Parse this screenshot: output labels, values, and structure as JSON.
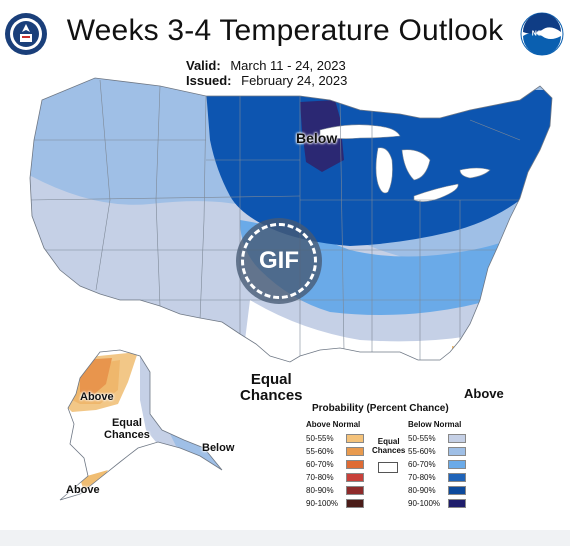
{
  "title": "Weeks 3-4 Temperature Outlook",
  "valid_label": "Valid:",
  "valid_dates": "March 11 - 24, 2023",
  "issued_label": "Issued:",
  "issued_date": "February 24, 2023",
  "logos": {
    "left": "doc-seal-icon",
    "right": "noaa-logo-icon"
  },
  "noaa_text": "NOAA",
  "play_button": "GIF",
  "map_labels": {
    "below_main": "Below",
    "equal_chances_main": "Equal\nChances",
    "above_florida": "Above",
    "alaska_above_top": "Above",
    "alaska_equal_chances": "Equal\nChances",
    "alaska_below": "Below",
    "alaska_above_bottom": "Above"
  },
  "legend": {
    "title": "Probability (Percent Chance)",
    "above_header": "Above Normal",
    "below_header": "Below Normal",
    "equal_label": "Equal\nChances",
    "above_items": [
      {
        "label": "50-55%",
        "color": "#f4c27a"
      },
      {
        "label": "55-60%",
        "color": "#e89a4e"
      },
      {
        "label": "60-70%",
        "color": "#df6b34"
      },
      {
        "label": "70-80%",
        "color": "#c8403a"
      },
      {
        "label": "80-90%",
        "color": "#8e2b2b"
      },
      {
        "label": "90-100%",
        "color": "#4a1c18"
      }
    ],
    "below_items": [
      {
        "label": "50-55%",
        "color": "#c5d0e6"
      },
      {
        "label": "55-60%",
        "color": "#9fbfe6"
      },
      {
        "label": "60-70%",
        "color": "#6aaae8"
      },
      {
        "label": "70-80%",
        "color": "#1f63b8"
      },
      {
        "label": "80-90%",
        "color": "#0d4a9c"
      },
      {
        "label": "90-100%",
        "color": "#1e1d6b"
      }
    ]
  },
  "colors": {
    "below_50_55": "#c5d0e6",
    "below_55_60": "#9fbfe6",
    "below_60_70": "#6aaae8",
    "below_70_80": "#0d55b0",
    "below_90_100": "#2b2873",
    "above_50_55": "#f0bd72",
    "above_55_60": "#e8954d",
    "above_60_70": "#de6a36",
    "border": "#8a8f99"
  }
}
